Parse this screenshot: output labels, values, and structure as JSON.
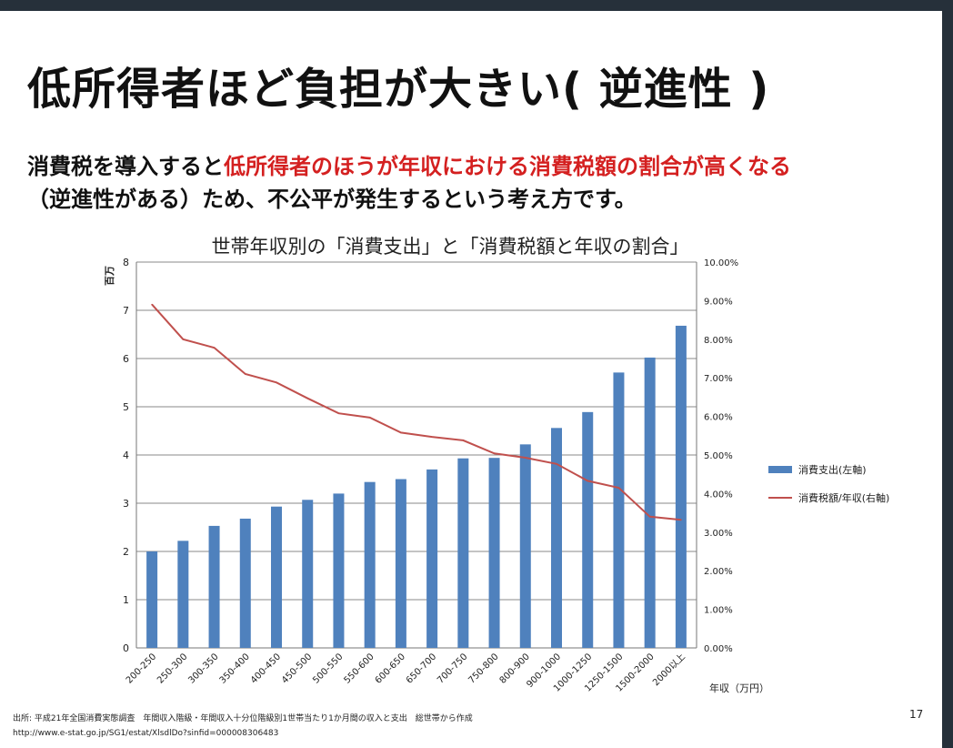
{
  "slide": {
    "title": "低所得者ほど負担が大きい( 逆進性 )",
    "subtitle_part1": "消費税を導入すると",
    "subtitle_red": "低所得者のほうが年収における消費税額の割合が高くなる",
    "subtitle_part2": "（逆進性がある）ため、不公平が発生するという考え方です。",
    "source_line1": "出所: 平成21年全国消費実態調査　年間収入階級・年間収入十分位階級別1世帯当たり1か月間の収入と支出　総世帯から作成",
    "source_line2": "http://www.e-stat.go.jp/SG1/estat/XlsdlDo?sinfid=000008306483",
    "page_number": "17"
  },
  "colors": {
    "bar": "#4f81bd",
    "line": "#c0504d",
    "subtitle_highlight": "#d42020"
  },
  "chart_data": {
    "type": "bar",
    "title": "世帯年収別の「消費支出」と「消費税額と年収の割合」",
    "categories": [
      "200-250",
      "250-300",
      "300-350",
      "350-400",
      "400-450",
      "450-500",
      "500-550",
      "550-600",
      "600-650",
      "650-700",
      "700-750",
      "750-800",
      "800-900",
      "900-1000",
      "1000-1250",
      "1250-1500",
      "1500-2000",
      "2000以上"
    ],
    "series": [
      {
        "name": "消費支出(左軸)",
        "type": "bar",
        "axis": "left",
        "values": [
          2.0,
          2.22,
          2.53,
          2.68,
          2.93,
          3.07,
          3.2,
          3.44,
          3.5,
          3.7,
          3.93,
          3.94,
          4.22,
          4.56,
          4.89,
          5.71,
          6.02,
          6.68
        ]
      },
      {
        "name": "消費税額/年収(右軸)",
        "type": "line",
        "axis": "right",
        "values": [
          8.9,
          8.0,
          7.78,
          7.1,
          6.88,
          6.47,
          6.08,
          5.97,
          5.58,
          5.47,
          5.38,
          5.04,
          4.93,
          4.77,
          4.33,
          4.15,
          3.4,
          3.32
        ]
      }
    ],
    "y_left": {
      "label": "百万",
      "min": 0,
      "max": 8,
      "ticks": [
        "0",
        "1",
        "2",
        "3",
        "4",
        "5",
        "6",
        "7",
        "8"
      ]
    },
    "y_right": {
      "min": 0,
      "max": 10,
      "ticks": [
        "0.00%",
        "1.00%",
        "2.00%",
        "3.00%",
        "4.00%",
        "5.00%",
        "6.00%",
        "7.00%",
        "8.00%",
        "9.00%",
        "10.00%"
      ]
    },
    "xlabel": "年収（万円）",
    "grid": "horizontal",
    "legend_position": "right"
  }
}
